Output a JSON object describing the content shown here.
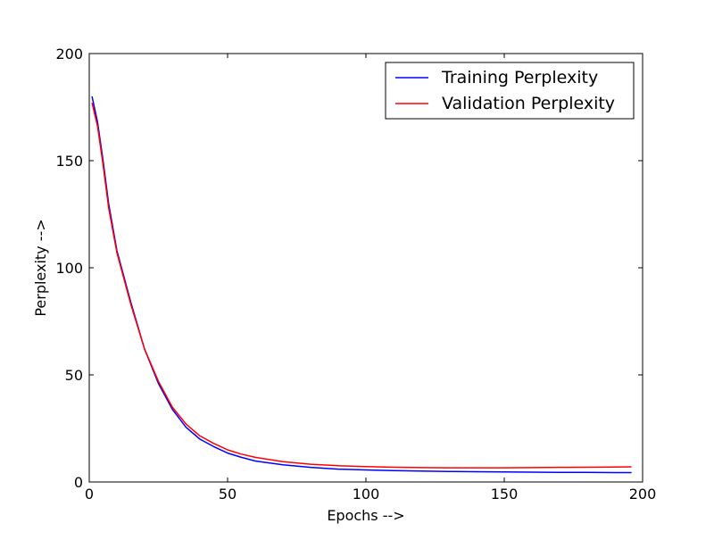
{
  "chart_data": {
    "type": "line",
    "title": "",
    "xlabel": "Epochs -->",
    "ylabel": "Perplexity -->",
    "xlim": [
      0,
      200
    ],
    "ylim": [
      0,
      200
    ],
    "xticks": [
      0,
      50,
      100,
      150,
      200
    ],
    "yticks": [
      0,
      50,
      100,
      150,
      200
    ],
    "grid": false,
    "legend_position": "top-right",
    "series": [
      {
        "name": "Training Perplexity",
        "color": "#0000ff",
        "x": [
          1,
          3,
          5,
          7,
          10,
          15,
          20,
          25,
          30,
          35,
          40,
          45,
          50,
          55,
          60,
          70,
          80,
          90,
          100,
          110,
          120,
          130,
          140,
          150,
          160,
          170,
          180,
          190,
          196
        ],
        "y": [
          180,
          168,
          150,
          130,
          108,
          84,
          62,
          46,
          34,
          25.5,
          20,
          16.5,
          13.5,
          11.5,
          9.8,
          8,
          6.8,
          6,
          5.6,
          5.3,
          5.1,
          4.9,
          4.8,
          4.7,
          4.6,
          4.5,
          4.5,
          4.4,
          4.4
        ]
      },
      {
        "name": "Validation Perplexity",
        "color": "#ff0000",
        "x": [
          1,
          3,
          5,
          7,
          10,
          15,
          20,
          25,
          30,
          35,
          40,
          45,
          50,
          55,
          60,
          70,
          80,
          90,
          100,
          110,
          120,
          130,
          140,
          150,
          160,
          170,
          180,
          190,
          196
        ],
        "y": [
          177,
          166,
          148,
          128,
          107,
          83,
          62,
          47,
          35,
          27,
          21.5,
          18,
          15,
          13,
          11.5,
          9.5,
          8.3,
          7.6,
          7.2,
          6.9,
          6.7,
          6.6,
          6.6,
          6.6,
          6.7,
          6.8,
          6.9,
          7,
          7.1
        ]
      }
    ]
  }
}
